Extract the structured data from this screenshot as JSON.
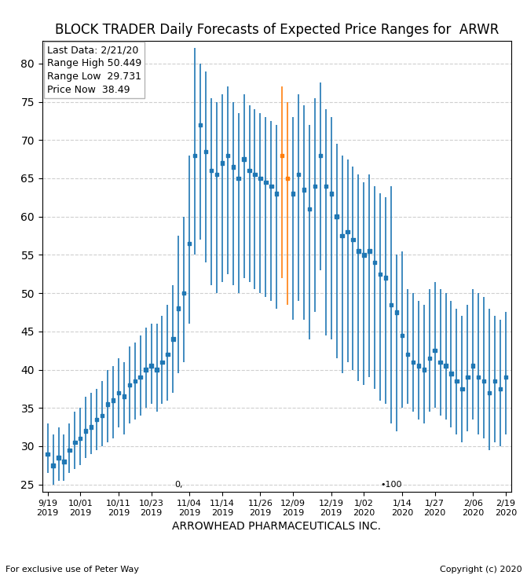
{
  "chart_data": {
    "type": "range",
    "title": "BLOCK TRADER Daily Forecasts of Expected Price Ranges for  ARWR",
    "subtitle": "Last Data: 2/21/20\nRange High 50.449\nRange Low  29.731\nPrice Now  38.49",
    "x_label": "ARROWHEAD PHARMACEUTICALS INC.",
    "footer": [
      "For exclusive use of Peter Way",
      "Copyright (c) 2020"
    ],
    "categories": [
      "9/19\n2019",
      null,
      null,
      null,
      null,
      null,
      "10/01\n2019",
      null,
      null,
      null,
      null,
      null,
      null,
      "10/11\n2019",
      null,
      null,
      null,
      null,
      null,
      "10/23\n2019",
      null,
      null,
      null,
      null,
      null,
      null,
      "11/04\n2019",
      null,
      null,
      null,
      null,
      null,
      "11/14\n2019",
      null,
      null,
      null,
      null,
      null,
      null,
      "11/26\n2019",
      null,
      null,
      null,
      null,
      null,
      "12/09\n2019",
      null,
      null,
      null,
      null,
      null,
      null,
      "12/19\n2019",
      null,
      null,
      null,
      null,
      null,
      "1/02\n2020",
      null,
      null,
      null,
      null,
      null,
      null,
      "1/14\n2020",
      null,
      null,
      null,
      null,
      null,
      "1/27\n2020",
      null,
      null,
      null,
      null,
      null,
      null,
      "2/06\n2020",
      null,
      null,
      null,
      null,
      null,
      "2/19\n2020"
    ],
    "mid": [
      29.0,
      27.5,
      28.5,
      28.0,
      29.5,
      30.5,
      31.0,
      32.0,
      32.5,
      33.5,
      34.0,
      35.5,
      36.0,
      37.0,
      36.5,
      38.0,
      38.5,
      39.0,
      40.0,
      40.5,
      40.0,
      41.0,
      42.0,
      44.0,
      48.0,
      50.0,
      56.5,
      68.0,
      72.0,
      68.5,
      66.0,
      65.5,
      67.0,
      68.0,
      66.5,
      65.0,
      67.5,
      66.0,
      65.5,
      65.0,
      64.5,
      64.0,
      63.0,
      68.0,
      65.0,
      63.0,
      65.5,
      63.5,
      61.0,
      64.0,
      68.0,
      64.0,
      63.0,
      60.0,
      57.5,
      58.0,
      57.0,
      55.5,
      55.0,
      55.5,
      54.0,
      52.5,
      52.0,
      48.5,
      47.5,
      44.5,
      42.0,
      41.0,
      40.5,
      40.0,
      41.5,
      42.5,
      41.0,
      40.5,
      39.5,
      38.5,
      37.5,
      39.0,
      40.5,
      39.0,
      38.5,
      37.0,
      38.5,
      37.5,
      39.0
    ],
    "low": [
      26.5,
      25.0,
      25.5,
      25.5,
      26.5,
      27.0,
      27.5,
      28.5,
      29.0,
      29.5,
      30.0,
      30.5,
      31.0,
      32.5,
      31.5,
      33.0,
      33.5,
      34.0,
      35.0,
      35.5,
      34.5,
      35.5,
      36.0,
      37.0,
      39.5,
      41.0,
      46.0,
      55.0,
      57.0,
      54.0,
      51.0,
      50.0,
      51.5,
      52.5,
      51.0,
      50.0,
      52.0,
      51.5,
      50.5,
      50.0,
      49.5,
      49.0,
      48.0,
      52.0,
      48.5,
      46.5,
      49.0,
      46.5,
      44.0,
      47.5,
      53.0,
      44.5,
      44.0,
      41.5,
      39.5,
      41.0,
      40.0,
      38.5,
      38.0,
      39.0,
      37.5,
      36.0,
      35.5,
      33.0,
      32.0,
      35.0,
      35.5,
      34.5,
      33.5,
      33.0,
      34.5,
      35.0,
      34.0,
      33.5,
      32.5,
      31.5,
      30.5,
      32.0,
      33.5,
      31.5,
      31.0,
      29.5,
      30.5,
      30.0,
      31.5
    ],
    "high": [
      33.0,
      31.5,
      32.5,
      31.5,
      33.0,
      34.5,
      35.0,
      36.5,
      37.0,
      37.5,
      38.5,
      40.0,
      40.5,
      41.5,
      41.0,
      43.0,
      43.5,
      44.5,
      45.5,
      46.0,
      46.0,
      47.0,
      48.5,
      51.0,
      57.5,
      60.0,
      68.0,
      82.0,
      80.0,
      79.0,
      75.5,
      75.0,
      76.0,
      77.0,
      75.0,
      73.5,
      76.0,
      74.5,
      74.0,
      73.5,
      73.0,
      72.5,
      72.0,
      77.0,
      75.0,
      73.0,
      76.0,
      74.5,
      72.0,
      75.5,
      77.5,
      74.0,
      73.0,
      69.5,
      68.0,
      67.5,
      66.5,
      65.5,
      64.5,
      65.5,
      64.0,
      63.0,
      62.5,
      64.0,
      55.0,
      55.5,
      50.5,
      50.0,
      49.0,
      48.5,
      50.5,
      51.5,
      50.5,
      50.0,
      49.0,
      48.0,
      47.0,
      48.5,
      50.5,
      50.0,
      49.5,
      48.0,
      47.0,
      46.5,
      47.5
    ],
    "colors": [
      "#1f77b4",
      "#1f77b4",
      "#1f77b4",
      "#1f77b4",
      "#1f77b4",
      "#1f77b4",
      "#1f77b4",
      "#1f77b4",
      "#1f77b4",
      "#1f77b4",
      "#1f77b4",
      "#1f77b4",
      "#1f77b4",
      "#1f77b4",
      "#1f77b4",
      "#1f77b4",
      "#1f77b4",
      "#1f77b4",
      "#1f77b4",
      "#1f77b4",
      "#1f77b4",
      "#1f77b4",
      "#1f77b4",
      "#1f77b4",
      "#1f77b4",
      "#1f77b4",
      "#1f77b4",
      "#1f77b4",
      "#1f77b4",
      "#1f77b4",
      "#1f77b4",
      "#1f77b4",
      "#1f77b4",
      "#1f77b4",
      "#1f77b4",
      "#1f77b4",
      "#1f77b4",
      "#1f77b4",
      "#1f77b4",
      "#1f77b4",
      "#1f77b4",
      "#1f77b4",
      "#1f77b4",
      "#ff7f0e",
      "#ff7f0e",
      "#1f77b4",
      "#1f77b4",
      "#1f77b4",
      "#1f77b4",
      "#1f77b4",
      "#1f77b4",
      "#1f77b4",
      "#1f77b4",
      "#1f77b4",
      "#1f77b4",
      "#1f77b4",
      "#1f77b4",
      "#1f77b4",
      "#1f77b4",
      "#1f77b4",
      "#1f77b4",
      "#1f77b4",
      "#1f77b4",
      "#1f77b4",
      "#1f77b4",
      "#1f77b4",
      "#1f77b4",
      "#1f77b4",
      "#1f77b4",
      "#1f77b4",
      "#1f77b4",
      "#1f77b4",
      "#1f77b4",
      "#1f77b4",
      "#1f77b4",
      "#1f77b4",
      "#1f77b4",
      "#1f77b4",
      "#1f77b4",
      "#1f77b4",
      "#1f77b4",
      "#1f77b4",
      "#1f77b4",
      "#1f77b4",
      "#1f77b4"
    ],
    "marker": "square",
    "annotations": [
      {
        "text": "0,",
        "x": 24,
        "y": 24.5
      },
      {
        "text": "•100",
        "x": 63,
        "y": 24.5
      }
    ],
    "ylim": [
      24,
      83
    ],
    "yticks": [
      25,
      30,
      35,
      40,
      45,
      50,
      55,
      60,
      65,
      70,
      75,
      80
    ],
    "grid": "y"
  }
}
